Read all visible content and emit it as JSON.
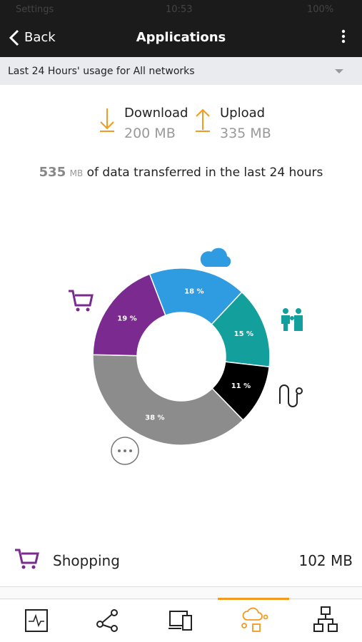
{
  "status_bar": {
    "carrier": "Settings",
    "time": "10:53",
    "battery": "100%"
  },
  "header": {
    "back": "Back",
    "title": "Applications"
  },
  "filter": {
    "label": "Last 24 Hours' usage for All networks"
  },
  "summary": {
    "download_label": "Download",
    "download_value": "200 MB",
    "upload_label": "Upload",
    "upload_value": "335 MB",
    "total_number": "535",
    "total_unit": "MB",
    "total_text": "of data transferred in the last 24 hours"
  },
  "chart_data": {
    "type": "donut",
    "categories": [
      "Cloud",
      "Family",
      "Music",
      "Other",
      "Shopping"
    ],
    "values": [
      18,
      15,
      11,
      38,
      19
    ],
    "value_labels": [
      "18 %",
      "15 %",
      "11 %",
      "38 %",
      "19 %"
    ],
    "colors": [
      "#2f9be0",
      "#13a09c",
      "#000000",
      "#8c8c8c",
      "#7b2b8f"
    ]
  },
  "list": {
    "item_name": "Shopping",
    "item_value": "102 MB"
  }
}
